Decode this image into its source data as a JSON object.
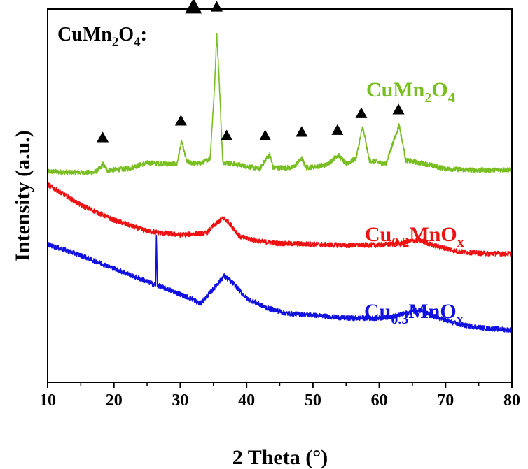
{
  "chart_data": {
    "type": "line",
    "xlabel": "2 Theta (°)",
    "ylabel": "Intensity (a.u.)",
    "xlim": [
      10,
      80
    ],
    "x_ticks": [
      10,
      20,
      30,
      40,
      50,
      60,
      70,
      80
    ],
    "ylim": [
      0,
      10
    ],
    "y_ticks_labeled": false,
    "grid": false,
    "legend_text": {
      "base": "CuMn",
      "sub1": "2",
      "mid": "O",
      "sub2": "4",
      "suffix": ":"
    },
    "legend_marker": "triangle-up",
    "series": [
      {
        "name_parts": {
          "base": "CuMn",
          "sub1": "2",
          "mid": "O",
          "sub2": "4"
        },
        "color": "#78be20",
        "points": [
          [
            10,
            5.65
          ],
          [
            14,
            5.62
          ],
          [
            17,
            5.62
          ],
          [
            18,
            5.75
          ],
          [
            18.3,
            5.85
          ],
          [
            19,
            5.68
          ],
          [
            22,
            5.72
          ],
          [
            25,
            5.88
          ],
          [
            28,
            5.85
          ],
          [
            29.5,
            5.85
          ],
          [
            30.2,
            6.45
          ],
          [
            31,
            5.9
          ],
          [
            33,
            5.85
          ],
          [
            34.5,
            6.0
          ],
          [
            35.2,
            8.0
          ],
          [
            35.5,
            9.35
          ],
          [
            35.9,
            8.0
          ],
          [
            36.4,
            5.9
          ],
          [
            38,
            5.85
          ],
          [
            42,
            5.72
          ],
          [
            43,
            6.0
          ],
          [
            43.5,
            6.1
          ],
          [
            44,
            5.75
          ],
          [
            47,
            5.75
          ],
          [
            48.3,
            6.0
          ],
          [
            49,
            5.75
          ],
          [
            52,
            5.82
          ],
          [
            53.8,
            6.1
          ],
          [
            55,
            5.85
          ],
          [
            56.5,
            6.0
          ],
          [
            57.5,
            6.85
          ],
          [
            58.5,
            5.95
          ],
          [
            61,
            5.85
          ],
          [
            63,
            6.9
          ],
          [
            64,
            5.95
          ],
          [
            67,
            5.85
          ],
          [
            70,
            5.72
          ],
          [
            75,
            5.68
          ],
          [
            80,
            5.7
          ]
        ]
      },
      {
        "name_parts": {
          "base": "Cu",
          "sub1": "0.2",
          "mid": "MnO",
          "sub2": "x"
        },
        "color": "#ee1111",
        "points": [
          [
            10,
            5.3
          ],
          [
            15,
            4.75
          ],
          [
            20,
            4.35
          ],
          [
            25,
            4.05
          ],
          [
            30,
            3.95
          ],
          [
            34,
            4.0
          ],
          [
            35,
            4.2
          ],
          [
            36.5,
            4.4
          ],
          [
            37.5,
            4.25
          ],
          [
            39,
            3.9
          ],
          [
            42,
            3.78
          ],
          [
            45,
            3.72
          ],
          [
            50,
            3.7
          ],
          [
            55,
            3.67
          ],
          [
            60,
            3.68
          ],
          [
            63,
            3.72
          ],
          [
            66,
            3.82
          ],
          [
            68,
            3.68
          ],
          [
            72,
            3.5
          ],
          [
            76,
            3.45
          ],
          [
            80,
            3.45
          ]
        ]
      },
      {
        "name_parts": {
          "base": "Cu",
          "sub1": "0.3",
          "mid": "MnO",
          "sub2": "x"
        },
        "color": "#1010e0",
        "points": [
          [
            10,
            3.7
          ],
          [
            15,
            3.4
          ],
          [
            20,
            3.05
          ],
          [
            25,
            2.7
          ],
          [
            26.3,
            2.6
          ],
          [
            26.4,
            3.95
          ],
          [
            26.55,
            2.6
          ],
          [
            28,
            2.5
          ],
          [
            32,
            2.22
          ],
          [
            33,
            2.1
          ],
          [
            35,
            2.5
          ],
          [
            36.6,
            2.85
          ],
          [
            38,
            2.65
          ],
          [
            40,
            2.25
          ],
          [
            43,
            2.0
          ],
          [
            46,
            1.85
          ],
          [
            50,
            1.8
          ],
          [
            55,
            1.72
          ],
          [
            60,
            1.72
          ],
          [
            63,
            1.8
          ],
          [
            66,
            1.95
          ],
          [
            68,
            1.78
          ],
          [
            72,
            1.55
          ],
          [
            76,
            1.45
          ],
          [
            80,
            1.4
          ]
        ]
      }
    ],
    "markers": [
      {
        "x": 18.3,
        "y": 6.55,
        "size": "small"
      },
      {
        "x": 32.0,
        "y": 10.05,
        "size": "large"
      },
      {
        "x": 35.5,
        "y": 10.05,
        "size": "small"
      },
      {
        "x": 30.1,
        "y": 7.0,
        "size": "small"
      },
      {
        "x": 37.0,
        "y": 6.6,
        "size": "small"
      },
      {
        "x": 42.8,
        "y": 6.6,
        "size": "small"
      },
      {
        "x": 48.3,
        "y": 6.7,
        "size": "small"
      },
      {
        "x": 53.7,
        "y": 6.75,
        "size": "small"
      },
      {
        "x": 57.3,
        "y": 7.2,
        "size": "small"
      },
      {
        "x": 62.9,
        "y": 7.3,
        "size": "small"
      }
    ]
  }
}
